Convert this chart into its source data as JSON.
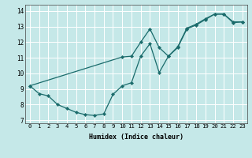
{
  "xlabel": "Humidex (Indice chaleur)",
  "background_color": "#c5e8e8",
  "grid_color": "#ffffff",
  "line_color": "#1a6b6b",
  "xlim": [
    -0.5,
    23.5
  ],
  "ylim": [
    6.8,
    14.4
  ],
  "line1_x": [
    0,
    1,
    2,
    3,
    4,
    5,
    6,
    7,
    8,
    9,
    10,
    11,
    12,
    13,
    14,
    15,
    16,
    17,
    18,
    19,
    20,
    21,
    22,
    23
  ],
  "line1_y": [
    9.2,
    8.7,
    8.55,
    8.0,
    7.75,
    7.5,
    7.35,
    7.3,
    7.4,
    8.65,
    9.2,
    9.4,
    11.1,
    11.9,
    10.05,
    11.1,
    11.65,
    12.85,
    13.1,
    13.45,
    13.8,
    13.8,
    13.3,
    13.3
  ],
  "line2_x": [
    0,
    10,
    11,
    12,
    13,
    14,
    15,
    16,
    17,
    18,
    19,
    20,
    21,
    22,
    23
  ],
  "line2_y": [
    9.2,
    11.05,
    11.1,
    12.0,
    12.85,
    11.65,
    11.1,
    11.7,
    12.9,
    13.15,
    13.5,
    13.8,
    13.8,
    13.25,
    13.3
  ],
  "yticks": [
    7,
    8,
    9,
    10,
    11,
    12,
    13,
    14
  ],
  "xticks": [
    0,
    1,
    2,
    3,
    4,
    5,
    6,
    7,
    8,
    9,
    10,
    11,
    12,
    13,
    14,
    15,
    16,
    17,
    18,
    19,
    20,
    21,
    22,
    23
  ],
  "xlabel_fontsize": 6.0,
  "tick_fontsize": 5.2,
  "linewidth": 0.9,
  "markersize": 2.2
}
